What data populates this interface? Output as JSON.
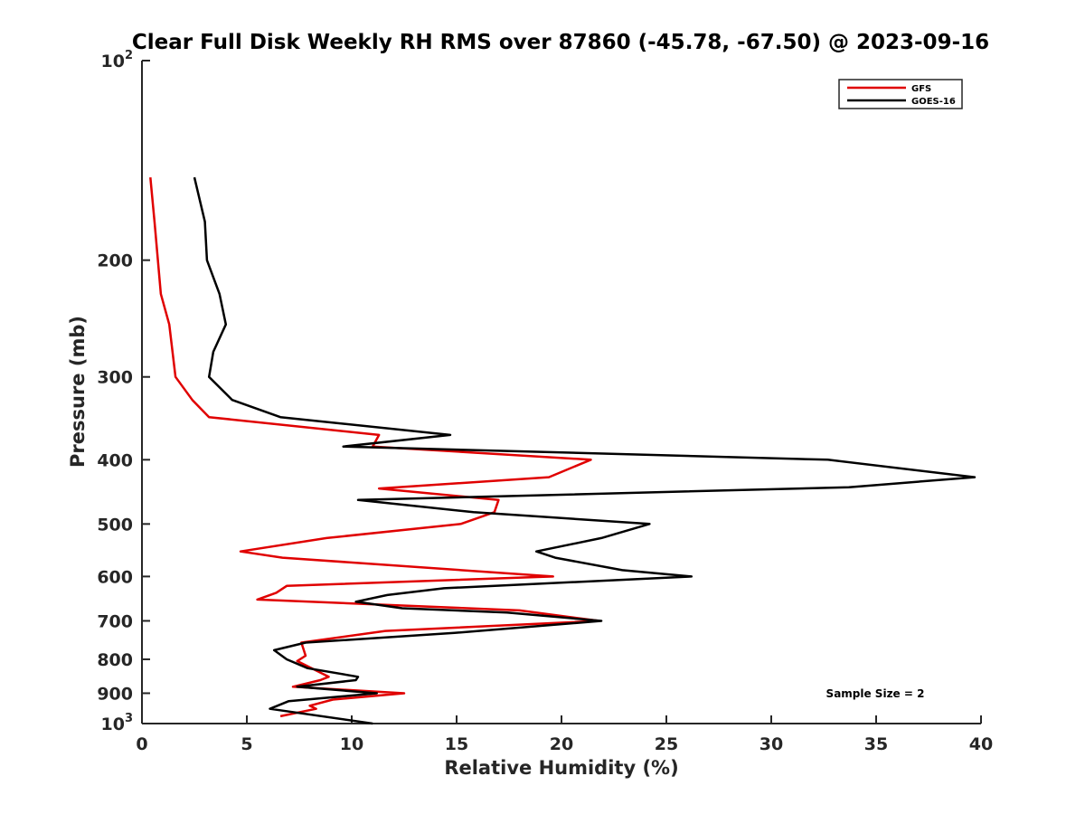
{
  "chart_data": {
    "type": "line",
    "title": "Clear Full Disk Weekly RH RMS over 87860 (-45.78, -67.50) @ 2023-09-16",
    "xlabel": "Relative Humidity (%)",
    "ylabel": "Pressure (mb)",
    "xlim": [
      0,
      40
    ],
    "ylim": [
      100,
      1000
    ],
    "yscale": "log",
    "y_reversed": true,
    "xticks": [
      0,
      5,
      10,
      15,
      20,
      25,
      30,
      35,
      40
    ],
    "yticks": [
      {
        "value": 100,
        "base": "10",
        "exp": "2"
      },
      {
        "value": 200,
        "label": "200"
      },
      {
        "value": 300,
        "label": "300"
      },
      {
        "value": 400,
        "label": "400"
      },
      {
        "value": 500,
        "label": "500"
      },
      {
        "value": 600,
        "label": "600"
      },
      {
        "value": 700,
        "label": "700"
      },
      {
        "value": 800,
        "label": "800"
      },
      {
        "value": 900,
        "label": "900"
      },
      {
        "value": 1000,
        "base": "10",
        "exp": "3"
      }
    ],
    "grid": false,
    "legend_position": "top-right",
    "annotation": "Sample Size = 2",
    "series": [
      {
        "name": "GFS",
        "color": "#e00000",
        "points": [
          [
            0.4,
            150
          ],
          [
            0.6,
            175
          ],
          [
            0.9,
            225
          ],
          [
            1.3,
            250
          ],
          [
            1.6,
            300
          ],
          [
            2.4,
            325
          ],
          [
            3.2,
            345
          ],
          [
            11.3,
            367
          ],
          [
            11.0,
            382
          ],
          [
            21.4,
            400
          ],
          [
            19.4,
            425
          ],
          [
            11.3,
            442
          ],
          [
            17.0,
            460
          ],
          [
            16.8,
            480
          ],
          [
            15.2,
            500
          ],
          [
            8.8,
            525
          ],
          [
            4.7,
            550
          ],
          [
            6.7,
            562
          ],
          [
            19.6,
            600
          ],
          [
            6.9,
            620
          ],
          [
            6.4,
            635
          ],
          [
            5.5,
            650
          ],
          [
            18.0,
            675
          ],
          [
            21.8,
            700
          ],
          [
            11.6,
            725
          ],
          [
            7.6,
            755
          ],
          [
            7.8,
            790
          ],
          [
            7.4,
            805
          ],
          [
            8.9,
            850
          ],
          [
            8.5,
            860
          ],
          [
            7.2,
            880
          ],
          [
            12.5,
            900
          ],
          [
            9.1,
            920
          ],
          [
            8.0,
            940
          ],
          [
            8.3,
            950
          ],
          [
            6.6,
            975
          ]
        ]
      },
      {
        "name": "GOES-16",
        "color": "#000000",
        "points": [
          [
            2.5,
            150
          ],
          [
            3.0,
            175
          ],
          [
            3.1,
            200
          ],
          [
            3.7,
            225
          ],
          [
            4.0,
            250
          ],
          [
            3.4,
            275
          ],
          [
            3.2,
            300
          ],
          [
            4.3,
            325
          ],
          [
            6.6,
            345
          ],
          [
            14.7,
            367
          ],
          [
            9.6,
            382
          ],
          [
            32.7,
            400
          ],
          [
            39.7,
            425
          ],
          [
            33.7,
            440
          ],
          [
            10.3,
            460
          ],
          [
            15.8,
            480
          ],
          [
            24.2,
            500
          ],
          [
            21.9,
            525
          ],
          [
            18.8,
            550
          ],
          [
            19.7,
            562
          ],
          [
            22.9,
            587
          ],
          [
            26.2,
            600
          ],
          [
            14.4,
            625
          ],
          [
            11.7,
            640
          ],
          [
            10.2,
            655
          ],
          [
            12.4,
            670
          ],
          [
            17.4,
            680
          ],
          [
            21.9,
            700
          ],
          [
            14.9,
            730
          ],
          [
            7.8,
            755
          ],
          [
            6.3,
            775
          ],
          [
            6.9,
            800
          ],
          [
            7.9,
            825
          ],
          [
            10.3,
            850
          ],
          [
            10.2,
            860
          ],
          [
            7.4,
            880
          ],
          [
            11.2,
            900
          ],
          [
            7.0,
            925
          ],
          [
            6.1,
            950
          ],
          [
            11.0,
            1000
          ]
        ]
      }
    ]
  }
}
